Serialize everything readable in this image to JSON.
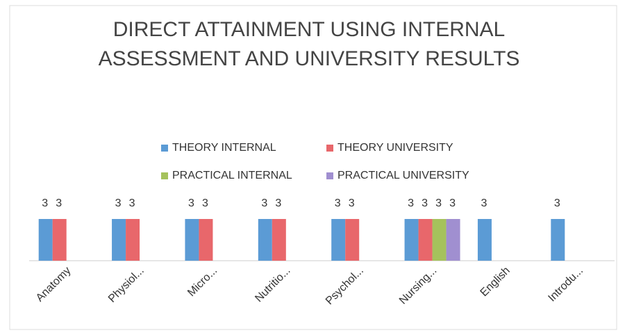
{
  "chart_data": {
    "type": "bar",
    "title": "DIRECT ATTAINMENT USING INTERNAL ASSESSMENT AND UNIVERSITY RESULTS",
    "categories": [
      "Anatomy",
      "Physiol...",
      "Micro...",
      "Nutritio...",
      "Psychol...",
      "Nursing...",
      "English",
      "Introdu..."
    ],
    "series": [
      {
        "name": "THEORY INTERNAL",
        "color": "#5b9bd5",
        "values": [
          3,
          3,
          3,
          3,
          3,
          3,
          3,
          3
        ]
      },
      {
        "name": "THEORY UNIVERSITY",
        "color": "#e8676b",
        "values": [
          3,
          3,
          3,
          3,
          3,
          3,
          null,
          null
        ]
      },
      {
        "name": "PRACTICAL INTERNAL",
        "color": "#a5c25c",
        "values": [
          null,
          null,
          null,
          null,
          null,
          3,
          null,
          null
        ]
      },
      {
        "name": "PRACTICAL UNIVERSITY",
        "color": "#a08fd0",
        "values": [
          null,
          null,
          null,
          null,
          null,
          3,
          null,
          null
        ]
      }
    ],
    "ylim": [
      0,
      3.5
    ],
    "legend": "top"
  }
}
